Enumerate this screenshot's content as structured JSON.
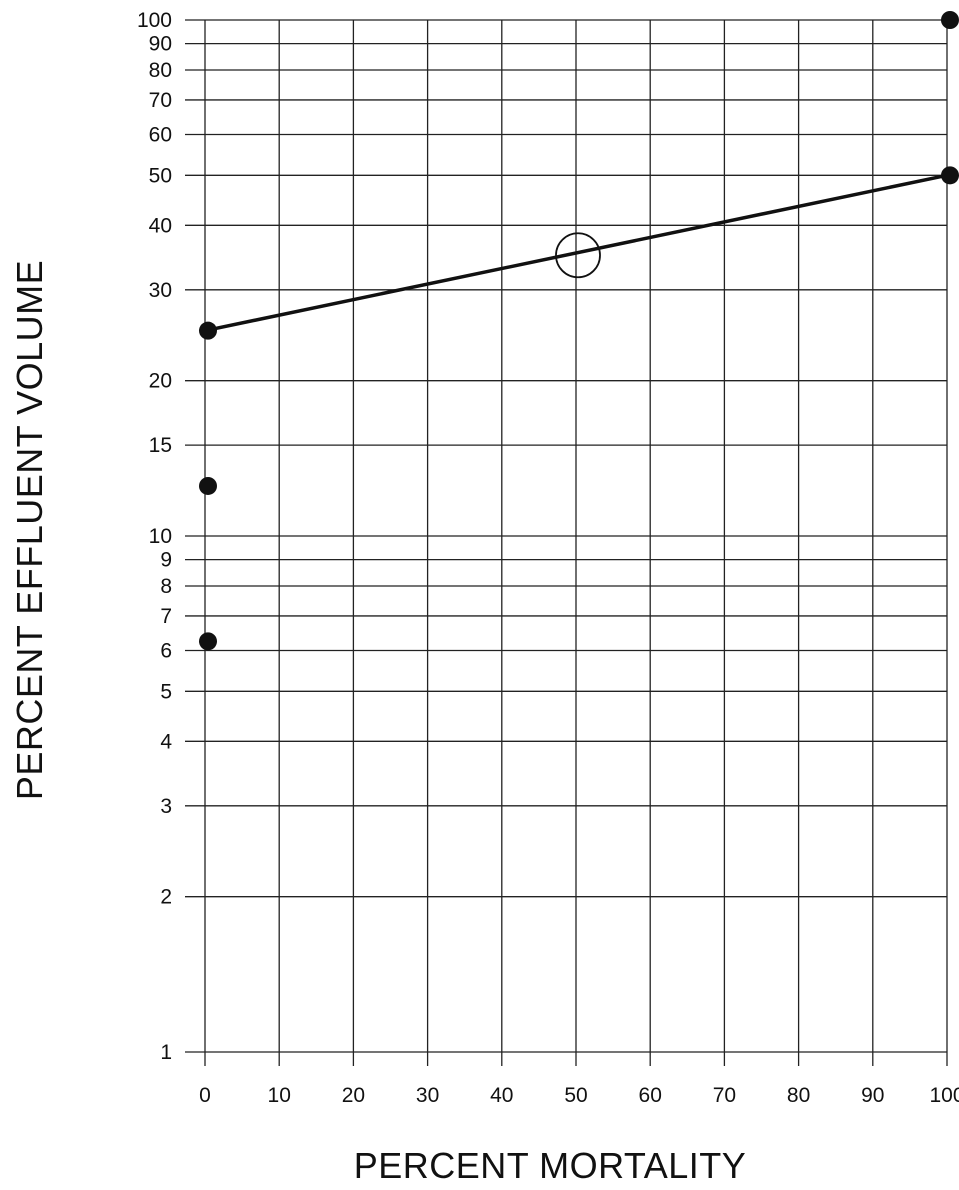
{
  "chart_data": {
    "type": "scatter",
    "title": "",
    "xlabel": "PERCENT MORTALITY",
    "ylabel": "PERCENT EFFLUENT VOLUME",
    "xlim": [
      0,
      100
    ],
    "ylim": [
      1,
      100
    ],
    "y_scale": "log",
    "grid": true,
    "x_ticks": [
      0,
      10,
      20,
      30,
      40,
      50,
      60,
      70,
      80,
      90,
      100
    ],
    "y_ticks": [
      1,
      2,
      3,
      4,
      5,
      6,
      7,
      8,
      9,
      10,
      15,
      20,
      30,
      40,
      50,
      60,
      70,
      80,
      90,
      100
    ],
    "points": [
      {
        "x": 0,
        "y": 6.25
      },
      {
        "x": 0,
        "y": 12.5
      },
      {
        "x": 0,
        "y": 25
      },
      {
        "x": 100,
        "y": 50
      },
      {
        "x": 100,
        "y": 100
      }
    ],
    "fit_line": {
      "x": [
        0,
        100
      ],
      "y": [
        25,
        50
      ]
    },
    "annotation_circle": {
      "x": 50,
      "y": 35
    }
  }
}
